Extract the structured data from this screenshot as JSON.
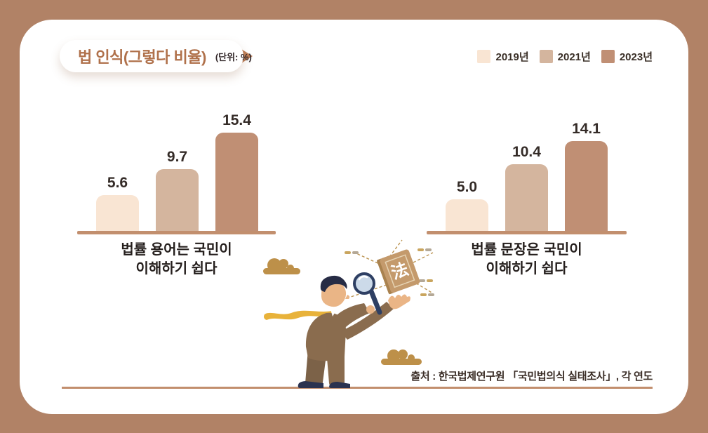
{
  "frame": {
    "bg_color": "#b18266",
    "card_color": "#ffffff"
  },
  "header": {
    "title": "법 인식(그렇다 비율)",
    "unit_label": "(단위: %)"
  },
  "legend": {
    "items": [
      {
        "label": "2019년",
        "color": "#f9e5d3"
      },
      {
        "label": "2021년",
        "color": "#d4b59e"
      },
      {
        "label": "2023년",
        "color": "#c08f74"
      }
    ]
  },
  "chart_data": [
    {
      "type": "bar",
      "title": "법률 용어는 국민이 이해하기 쉽다",
      "label_lines": [
        "법률 용어는 국민이",
        "이해하기 쉽다"
      ],
      "categories": [
        "2019년",
        "2021년",
        "2023년"
      ],
      "values": [
        5.6,
        9.7,
        15.4
      ],
      "value_labels": [
        "5.6",
        "9.7",
        "15.4"
      ],
      "unit": "%",
      "ylim": [
        0,
        16
      ],
      "grid": false,
      "legend_position": "top-right"
    },
    {
      "type": "bar",
      "title": "법률 문장은 국민이 이해하기 쉽다",
      "label_lines": [
        "법률 문장은 국민이",
        "이해하기 쉽다"
      ],
      "categories": [
        "2019년",
        "2021년",
        "2023년"
      ],
      "values": [
        5.0,
        10.4,
        14.1
      ],
      "value_labels": [
        "5.0",
        "10.4",
        "14.1"
      ],
      "unit": "%",
      "ylim": [
        0,
        16
      ],
      "grid": false,
      "legend_position": "top-right"
    }
  ],
  "footer": {
    "source": "출처 : 한국법제연구원 「국민법의식 실태조사」, 각 연도"
  },
  "illustration": {
    "book_character": "法"
  },
  "colors": {
    "axis": "#c28f6e",
    "title_text": "#b0714b",
    "arrow": "#bd7e57",
    "dark_text": "#342b27",
    "cloud": "#bd9049",
    "suit": "#8a6c4e",
    "tie": "#e8b23a",
    "book": "#c49a6c"
  }
}
